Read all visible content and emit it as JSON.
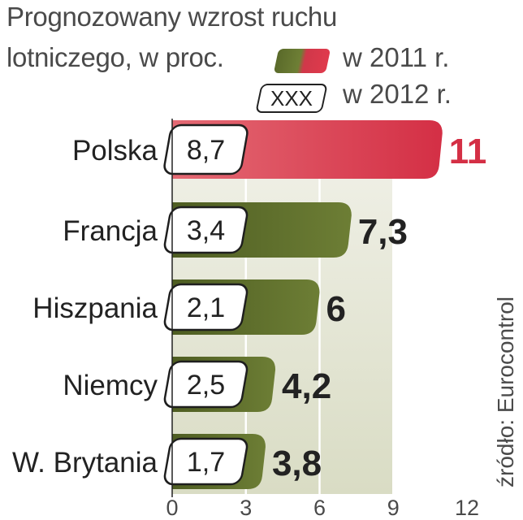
{
  "title_line1": "Prognozowany wzrost ruchu",
  "title_line2": "lotniczego, w proc.",
  "legend": {
    "label_2011": "w 2011 r.",
    "label_2012": "w 2012 r.",
    "swatch_2012_text": "XXX"
  },
  "source": "źródło: Eurocontrol",
  "colors": {
    "highlight": "#d42f45",
    "bar": "#5b6a2a",
    "panel": "#e9e9dd",
    "text_dark": "#222222",
    "text_gray": "#4a4a4a"
  },
  "chart_data": {
    "type": "bar",
    "orientation": "horizontal",
    "categories": [
      "Polska",
      "Francja",
      "Hiszpania",
      "Niemcy",
      "W. Brytania"
    ],
    "series": [
      {
        "name": "w 2011 r.",
        "values": [
          11,
          7.3,
          6,
          4.2,
          3.8
        ]
      },
      {
        "name": "w 2012 r.",
        "values": [
          8.7,
          3.4,
          2.1,
          2.5,
          1.7
        ]
      }
    ],
    "value_labels_2011": [
      "11",
      "7,3",
      "6",
      "4,2",
      "3,8"
    ],
    "value_labels_2012": [
      "8,7",
      "3,4",
      "2,1",
      "2,5",
      "1,7"
    ],
    "highlight_index": 0,
    "xlim": [
      0,
      12
    ],
    "xticks": [
      "0",
      "3",
      "6",
      "9",
      "12"
    ],
    "grid": true
  }
}
